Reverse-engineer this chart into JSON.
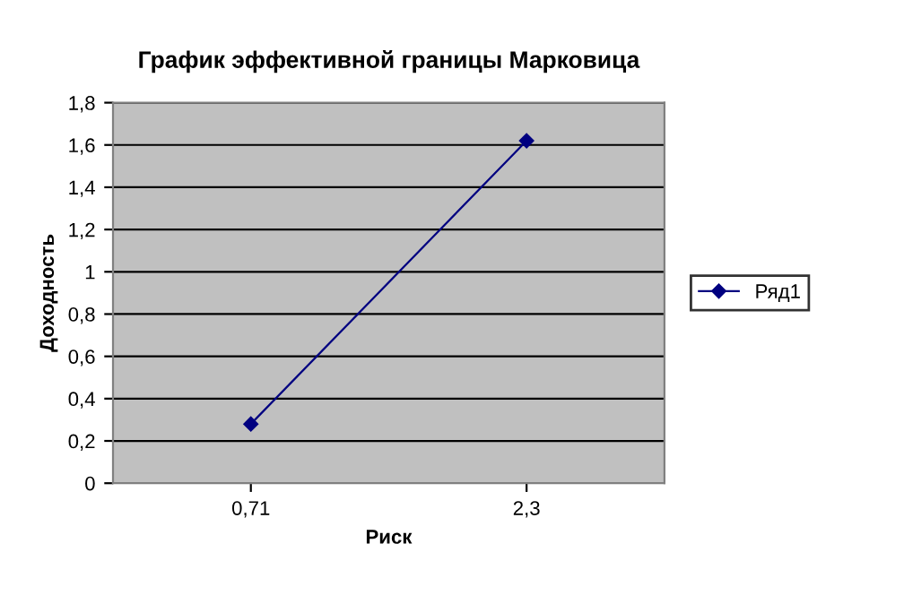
{
  "chart_data": {
    "type": "line",
    "title": "График эффективной границы Марковица",
    "xlabel": "Риск",
    "ylabel": "Доходность",
    "categories": [
      "0,71",
      "2,3"
    ],
    "series": [
      {
        "name": "Ряд1",
        "color": "#000080",
        "values": [
          0.28,
          1.62
        ]
      }
    ],
    "ylim": [
      0,
      1.8
    ],
    "yticks": [
      0,
      {
        "value": 0.2,
        "label": "0,2"
      },
      {
        "value": 0.4,
        "label": "0,4"
      },
      {
        "value": 0.6,
        "label": "0,6"
      },
      {
        "value": 0.8,
        "label": "0,8"
      },
      1,
      {
        "value": 1.2,
        "label": "1,2"
      },
      {
        "value": 1.4,
        "label": "1,4"
      },
      {
        "value": 1.6,
        "label": "1,6"
      },
      {
        "value": 1.8,
        "label": "1,8"
      }
    ],
    "grid": "y",
    "legend": "right",
    "marker": "diamond",
    "line_style": "solid"
  }
}
